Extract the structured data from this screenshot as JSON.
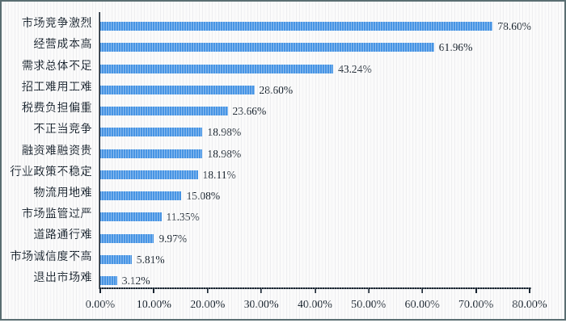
{
  "frame": {
    "background": "#fafafa",
    "border_color": "#5a6e72"
  },
  "chart_data": {
    "type": "bar",
    "orientation": "horizontal",
    "title": "",
    "xlabel": "",
    "ylabel": "",
    "categories": [
      "市场竞争激烈",
      "经营成本高",
      "需求总体不足",
      "招工难用工难",
      "税费负担偏重",
      "不正当竞争",
      "融资难融资贵",
      "行业政策不稳定",
      "物流用地难",
      "市场监管过严",
      "道路通行难",
      "市场诚信度不高",
      "退出市场难"
    ],
    "values": [
      78.6,
      61.96,
      43.24,
      28.6,
      23.66,
      18.98,
      18.98,
      18.11,
      15.08,
      11.35,
      9.97,
      5.81,
      3.12
    ],
    "value_labels": [
      "78.60%",
      "61.96%",
      "43.24%",
      "28.60%",
      "23.66%",
      "18.98%",
      "18.98%",
      "18.11%",
      "15.08%",
      "11.35%",
      "9.97%",
      "5.81%",
      "3.12%"
    ],
    "x_tick_labels": [
      "0.00%",
      "10.00%",
      "20.00%",
      "30.00%",
      "40.00%",
      "50.00%",
      "60.00%",
      "70.00%",
      "80.00%"
    ],
    "xlim": [
      0,
      80
    ],
    "grid": false,
    "legend": false,
    "bar_color": "#4695e6",
    "axis_color": "#16222e",
    "text_color": "#0c1722"
  }
}
